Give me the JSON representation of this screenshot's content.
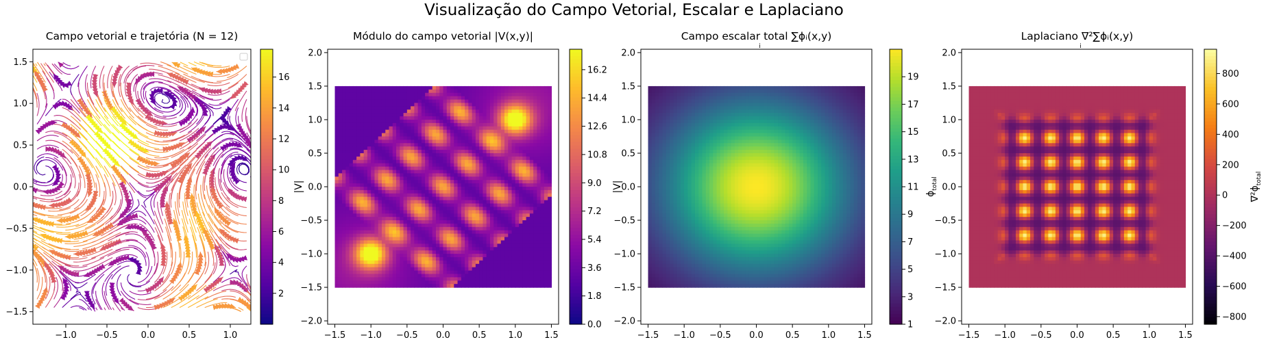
{
  "figure": {
    "suptitle": "Visualização do Campo Vetorial, Escalar e Laplaciano"
  },
  "chart_data": [
    {
      "type": "heatmap",
      "subtype": "streamplot",
      "title": "Campo vetorial e trajetória (N = 12)",
      "xlim": [
        -1.4,
        1.25
      ],
      "ylim": [
        -1.65,
        1.65
      ],
      "xticks": [
        "−1.0",
        "−0.5",
        "0.0",
        "0.5",
        "1.0"
      ],
      "xtick_values": [
        -1.0,
        -0.5,
        0.0,
        0.5,
        1.0
      ],
      "yticks": [
        "−1.5",
        "−1.0",
        "−0.5",
        "0.0",
        "0.5",
        "1.0",
        "1.5"
      ],
      "ytick_values": [
        -1.5,
        -1.0,
        -0.5,
        0.0,
        0.5,
        1.0,
        1.5
      ],
      "colormap": "plasma",
      "colorbar": {
        "label": "|V|",
        "range": [
          0,
          17.8
        ],
        "ticks": [
          "2",
          "4",
          "6",
          "8",
          "10",
          "12",
          "14",
          "16"
        ],
        "tick_values": [
          2,
          4,
          6,
          8,
          10,
          12,
          14,
          16
        ]
      },
      "legend": "top-right (empty)"
    },
    {
      "type": "heatmap",
      "title": "Módulo do campo vetorial |V(x,y)|",
      "xlim": [
        -1.6,
        1.6
      ],
      "ylim": [
        -2.05,
        2.05
      ],
      "data_extent": [
        -1.5,
        1.5
      ],
      "xticks": [
        "−1.5",
        "−1.0",
        "−0.5",
        "0.0",
        "0.5",
        "1.0",
        "1.5"
      ],
      "xtick_values": [
        -1.5,
        -1.0,
        -0.5,
        0.0,
        0.5,
        1.0,
        1.5
      ],
      "yticks": [
        "−2.0",
        "−1.5",
        "−1.0",
        "−0.5",
        "0.0",
        "0.5",
        "1.0",
        "1.5",
        "2.0"
      ],
      "ytick_values": [
        -2.0,
        -1.5,
        -1.0,
        -0.5,
        0.0,
        0.5,
        1.0,
        1.5,
        2.0
      ],
      "colormap": "plasma",
      "colorbar": {
        "label": "|V|",
        "range": [
          0,
          17.5
        ],
        "ticks": [
          "0.0",
          "1.8",
          "3.6",
          "5.4",
          "7.2",
          "9.0",
          "10.8",
          "12.6",
          "14.4",
          "16.2"
        ],
        "tick_values": [
          0.0,
          1.8,
          3.6,
          5.4,
          7.2,
          9.0,
          10.8,
          12.6,
          14.4,
          16.2
        ]
      }
    },
    {
      "type": "heatmap",
      "title": "Campo escalar total ∑ϕᵢ(x,y)",
      "title_sub": "i",
      "xlim": [
        -1.6,
        1.6
      ],
      "ylim": [
        -2.05,
        2.05
      ],
      "data_extent": [
        -1.5,
        1.5
      ],
      "xticks": [
        "−1.5",
        "−1.0",
        "−0.5",
        "0.0",
        "0.5",
        "1.0",
        "1.5"
      ],
      "xtick_values": [
        -1.5,
        -1.0,
        -0.5,
        0.0,
        0.5,
        1.0,
        1.5
      ],
      "yticks": [
        "−2.0",
        "−1.5",
        "−1.0",
        "−0.5",
        "0.0",
        "0.5",
        "1.0",
        "1.5",
        "2.0"
      ],
      "ytick_values": [
        -2.0,
        -1.5,
        -1.0,
        -0.5,
        0.0,
        0.5,
        1.0,
        1.5,
        2.0
      ],
      "colormap": "viridis",
      "colorbar": {
        "label": "ϕ",
        "label_sub": "total",
        "range": [
          1,
          21
        ],
        "ticks": [
          "1",
          "3",
          "5",
          "7",
          "9",
          "11",
          "13",
          "15",
          "17",
          "19"
        ],
        "tick_values": [
          1,
          3,
          5,
          7,
          9,
          11,
          13,
          15,
          17,
          19
        ]
      }
    },
    {
      "type": "heatmap",
      "title": "Laplaciano ∇²∑ϕᵢ(x,y)",
      "title_sub": "i",
      "xlim": [
        -1.6,
        1.6
      ],
      "ylim": [
        -2.05,
        2.05
      ],
      "data_extent": [
        -1.5,
        1.5
      ],
      "xticks": [
        "−1.5",
        "−1.0",
        "−0.5",
        "0.0",
        "0.5",
        "1.0",
        "1.5"
      ],
      "xtick_values": [
        -1.5,
        -1.0,
        -0.5,
        0.0,
        0.5,
        1.0,
        1.5
      ],
      "yticks": [
        "−2.0",
        "−1.5",
        "−1.0",
        "−0.5",
        "0.0",
        "0.5",
        "1.0",
        "1.5",
        "2.0"
      ],
      "ytick_values": [
        -2.0,
        -1.5,
        -1.0,
        -0.5,
        0.0,
        0.5,
        1.0,
        1.5,
        2.0
      ],
      "colormap": "inferno",
      "colorbar": {
        "label": "∇²ϕ",
        "label_sub": "total",
        "range": [
          -850,
          960
        ],
        "ticks": [
          "−800",
          "−600",
          "−400",
          "−200",
          "0",
          "200",
          "400",
          "600",
          "800"
        ],
        "tick_values": [
          -800,
          -600,
          -400,
          -200,
          0,
          200,
          400,
          600,
          800
        ]
      }
    }
  ]
}
